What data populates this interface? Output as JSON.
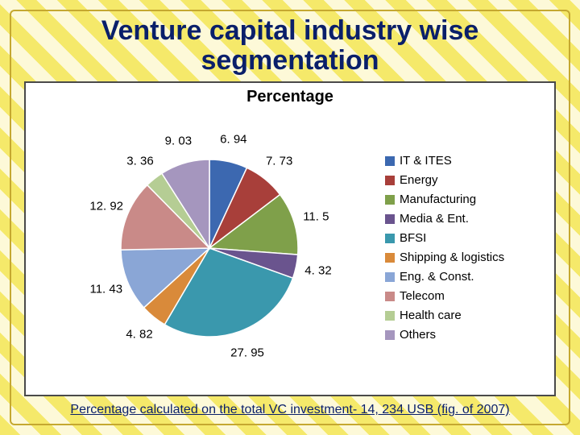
{
  "title": "Venture capital industry wise segmentation",
  "chart": {
    "type": "pie",
    "title": "Percentage",
    "radius": 110,
    "start_angle_deg": -90,
    "background_color": "#ffffff",
    "border_color": "#4a4a4a",
    "slice_border_color": "#ffffff",
    "slices": [
      {
        "label": "IT & ITES",
        "value": 6.94,
        "color": "#3c68b0"
      },
      {
        "label": "Energy",
        "value": 7.73,
        "color": "#a83f3a"
      },
      {
        "label": "Manufacturing",
        "value": 11.5,
        "color": "#7fa04a"
      },
      {
        "label": "Media & Ent.",
        "value": 4.32,
        "color": "#6a548e"
      },
      {
        "label": "BFSI",
        "value": 27.95,
        "color": "#3a98ad"
      },
      {
        "label": "Shipping & logistics",
        "value": 4.82,
        "color": "#d98a3a"
      },
      {
        "label": "Eng. & Const.",
        "value": 11.43,
        "color": "#8aa6d6"
      },
      {
        "label": "Telecom",
        "value": 12.92,
        "color": "#c98a88"
      },
      {
        "label": "Health care",
        "value": 3.36,
        "color": "#b5cd94"
      },
      {
        "label": "Others",
        "value": 9.03,
        "color": "#a596be"
      }
    ],
    "label_fontsize": 15,
    "legend_fontsize": 15,
    "title_fontsize": 20
  },
  "footer": "Percentage calculated on the total VC investment- 14, 234 USB (fig. of 2007)"
}
